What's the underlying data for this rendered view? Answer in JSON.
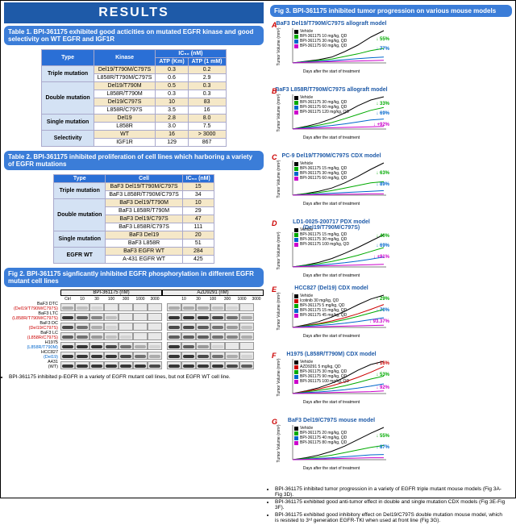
{
  "header": "RESULTS",
  "table1": {
    "title": "Table 1. BPI-361175 exhibited good acticities on mutated EGFR kinase and good selectivity on WT EGFR and IGF1R",
    "cols": [
      "Type",
      "Kinase",
      "ATP (Km)",
      "ATP (1 mM)"
    ],
    "ic50_hdr": "IC₅₀ (nM)",
    "rows": [
      {
        "cat": "Triple mutation",
        "span": 2,
        "k": "Del19/T790M/C797S",
        "a": "0.3",
        "b": "0.2"
      },
      {
        "cat": "",
        "k": "L858R/T790M/C797S",
        "a": "0.6",
        "b": "2.9"
      },
      {
        "cat": "Double mutation",
        "span": 4,
        "k": "Del19/T790M",
        "a": "0.5",
        "b": "0.3"
      },
      {
        "cat": "",
        "k": "L858R/T790M",
        "a": "0.3",
        "b": "0.3"
      },
      {
        "cat": "",
        "k": "Del19/C797S",
        "a": "10",
        "b": "83"
      },
      {
        "cat": "",
        "k": "L858R/C797S",
        "a": "3.5",
        "b": "16"
      },
      {
        "cat": "Single mutation",
        "span": 2,
        "k": "Del19",
        "a": "2.8",
        "b": "8.0"
      },
      {
        "cat": "",
        "k": "L858R",
        "a": "3.0",
        "b": "7.5"
      },
      {
        "cat": "Selectivity",
        "span": 2,
        "k": "WT",
        "a": "16",
        "b": "> 3000"
      },
      {
        "cat": "",
        "k": "IGF1R",
        "a": "129",
        "b": "867"
      }
    ]
  },
  "table2": {
    "title": "Table 2.  BPI-361175 inhibited proliferation of cell lines which harboring a variety of EGFR mutations",
    "cols": [
      "Type",
      "Cell",
      "IC₅₀ (nM)"
    ],
    "rows": [
      {
        "cat": "Triple mutation",
        "span": 2,
        "c": "BaF3 Del19/T790M/C797S",
        "v": "15"
      },
      {
        "cat": "",
        "c": "BaF3 L858R/T790M/C797S",
        "v": "34"
      },
      {
        "cat": "Double mutation",
        "span": 4,
        "c": "BaF3 Del19/T790M",
        "v": "10"
      },
      {
        "cat": "",
        "c": "BaF3 L858R/T790M",
        "v": "29"
      },
      {
        "cat": "",
        "c": "BaF3 Del19/C797S",
        "v": "47"
      },
      {
        "cat": "",
        "c": "BaF3 L858R/C797S",
        "v": "111"
      },
      {
        "cat": "Single mutation",
        "span": 2,
        "c": "BaF3 Del19",
        "v": "20"
      },
      {
        "cat": "",
        "c": "BaF3 L858R",
        "v": "51"
      },
      {
        "cat": "EGFR WT",
        "span": 2,
        "c": "BaF3 EGFR WT",
        "v": "284"
      },
      {
        "cat": "",
        "c": "A-431 EGFR WT",
        "v": "425"
      }
    ]
  },
  "fig2": {
    "title": "Fig 2. BPI-361175 signficantly inhibited EGFR phosphorylation in different EGFR mutant cell lines",
    "drug1": "BPI-361175 (nM)",
    "drug2": "AZD9291 (nM)",
    "conc": [
      "Ctrl",
      "10",
      "30",
      "100",
      "300",
      "1000",
      "3000",
      "",
      "10",
      "30",
      "100",
      "300",
      "1000",
      "3000"
    ],
    "rows": [
      {
        "l": "BaF3 DTC",
        "s": "(Del19/T790M/C797S)",
        "c": "red",
        "bands": [
          0.3,
          0.2,
          0.1,
          0,
          0,
          0,
          0,
          0,
          0.3,
          0.3,
          0.3,
          0.2,
          0.1,
          0
        ]
      },
      {
        "l": "BaF3 LTC",
        "s": "(L858R/T790M/C797S)",
        "c": "red",
        "bands": [
          0.9,
          0.7,
          0.5,
          0.2,
          0,
          0,
          0,
          0,
          0.9,
          0.9,
          0.9,
          0.8,
          0.6,
          0.3
        ]
      },
      {
        "l": "BaF3 DC",
        "s": "(Del19/C797S)",
        "c": "red",
        "bands": [
          0.8,
          0.6,
          0.3,
          0.1,
          0,
          0,
          0,
          0,
          0.8,
          0.8,
          0.7,
          0.6,
          0.4,
          0.2
        ]
      },
      {
        "l": "BaF3 LC",
        "s": "(L858R/C797S)",
        "c": "red",
        "bands": [
          0.7,
          0.6,
          0.4,
          0.2,
          0.1,
          0,
          0,
          0,
          0.7,
          0.7,
          0.7,
          0.6,
          0.5,
          0.3
        ]
      },
      {
        "l": "H1975",
        "s": "(L858R/T790M)",
        "c": "blue",
        "bands": [
          0.9,
          0.9,
          0.9,
          0.8,
          0.6,
          0.3,
          0.1,
          0,
          0.9,
          0.7,
          0.4,
          0.1,
          0,
          0
        ]
      },
      {
        "l": "HCC827",
        "s": "(Del19)",
        "c": "blue",
        "bands": [
          0.9,
          0.9,
          0.9,
          0.9,
          0.8,
          0.6,
          0.3,
          0,
          0.9,
          0.9,
          0.8,
          0.6,
          0.3,
          0.1
        ]
      },
      {
        "l": "A431",
        "s": "(WT)",
        "c": "",
        "bands": [
          0.9,
          0.9,
          0.9,
          0.9,
          0.9,
          0.9,
          0.8,
          0,
          0.9,
          0.9,
          0.9,
          0.9,
          0.8,
          0.7
        ]
      }
    ],
    "note": "BPI-361175 inhibited p-EGFR in a variety of EGFR mutant cell lines, but not EGFR WT cell line."
  },
  "fig3": {
    "title": "Fig 3. BPI-361175 inhibited tumor progression on various mouse models",
    "xlabel": "Days after the start of treatment",
    "ylabel": "Tumor Volume (mm³)",
    "charts": [
      {
        "id": "A",
        "title": "BaF3 Del19/T790M/C797S allograft model",
        "legend": [
          [
            "Vehicle",
            "#000"
          ],
          [
            "BPI-361175 10 mg/kg, QD",
            "#0a0"
          ],
          [
            "BPI-361175 30 mg/kg, QD",
            "#06c"
          ],
          [
            "BPI-361175 60 mg/kg, QD",
            "#c0c"
          ]
        ],
        "series": [
          [
            0,
            5,
            10,
            18,
            35,
            55,
            80,
            100
          ],
          [
            0,
            4,
            8,
            12,
            20,
            28,
            38,
            45
          ],
          [
            0,
            3,
            5,
            7,
            10,
            13,
            16,
            18
          ],
          [
            0,
            2,
            3,
            4,
            5,
            6,
            7,
            8
          ]
        ],
        "colors": [
          "#000",
          "#0a0",
          "#06c",
          "#c0c"
        ],
        "pcts": [
          [
            "55%",
            "#0a0",
            20
          ],
          [
            "77%",
            "#06c",
            32
          ]
        ],
        "xmax": 18,
        "ymax": 100
      },
      {
        "id": "B",
        "title": "BaF3 L858R/T790M/C797S allograft model",
        "legend": [
          [
            "Vehicle",
            "#000"
          ],
          [
            "BPI-361175 30 mg/kg, QD",
            "#0a0"
          ],
          [
            "BPI-361175 60 mg/kg, QD",
            "#06c"
          ],
          [
            "BPI-361175 120 mg/kg, QD",
            "#c0c"
          ]
        ],
        "series": [
          [
            0,
            8,
            18,
            32,
            50,
            72,
            90,
            100
          ],
          [
            0,
            6,
            12,
            20,
            32,
            45,
            58,
            67
          ],
          [
            0,
            4,
            7,
            11,
            16,
            22,
            28,
            31
          ],
          [
            0,
            2,
            3,
            4,
            5,
            6,
            7,
            8
          ]
        ],
        "colors": [
          "#000",
          "#0a0",
          "#06c",
          "#c0c"
        ],
        "pcts": [
          [
            "33%",
            "#0a0",
            18
          ],
          [
            "69%",
            "#06c",
            30
          ],
          [
            "+92%",
            "#c0c",
            44
          ]
        ],
        "xmax": 18,
        "ymax": 100
      },
      {
        "id": "C",
        "title": "PC-9 Del19/T790M/C797S CDX model",
        "legend": [
          [
            "Vehicle",
            "#000"
          ],
          [
            "BPI-361175 15 mg/kg, QD",
            "#0a0"
          ],
          [
            "BPI-361175 30 mg/kg, QD",
            "#06c"
          ],
          [
            "BPI-361175 60 mg/kg, QD",
            "#c0c"
          ]
        ],
        "series": [
          [
            0,
            5,
            12,
            22,
            38,
            58,
            80,
            100
          ],
          [
            0,
            4,
            8,
            14,
            22,
            30,
            38,
            42
          ],
          [
            0,
            2,
            4,
            6,
            8,
            10,
            12,
            14
          ],
          [
            0,
            1,
            2,
            2,
            3,
            3,
            4,
            4
          ]
        ],
        "colors": [
          "#000",
          "#0a0",
          "#06c",
          "#c0c"
        ],
        "pcts": [
          [
            "63%",
            "#0a0",
            22
          ],
          [
            "89%",
            "#06c",
            36
          ]
        ],
        "xmax": 28,
        "ymax": 100
      },
      {
        "id": "D",
        "title": "LD1-0025-200717 PDX model (Del19/T790M/C797S)",
        "legend": [
          [
            "Vehicle",
            "#000"
          ],
          [
            "BPI-361175 15 mg/kg, QD",
            "#0a0"
          ],
          [
            "BPI-361175 30 mg/kg, QD",
            "#06c"
          ],
          [
            "BPI-361175 100 mg/kg, QD",
            "#c0c"
          ]
        ],
        "series": [
          [
            0,
            6,
            14,
            26,
            42,
            60,
            80,
            100
          ],
          [
            0,
            5,
            10,
            17,
            26,
            36,
            48,
            60
          ],
          [
            0,
            3,
            6,
            9,
            13,
            18,
            24,
            31
          ],
          [
            0,
            2,
            3,
            4,
            5,
            6,
            7,
            8
          ]
        ],
        "colors": [
          "#000",
          "#0a0",
          "#06c",
          "#c0c"
        ],
        "pcts": [
          [
            "40%",
            "#0a0",
            18
          ],
          [
            "69%",
            "#06c",
            30
          ],
          [
            "+91%",
            "#c0c",
            44
          ]
        ],
        "xmax": 28,
        "ymax": 100
      },
      {
        "id": "E",
        "title": "HCC827 (Del19) CDX model",
        "legend": [
          [
            "Vehicle",
            "#000"
          ],
          [
            "Icotinib 30 mg/kg, QD",
            "#c00"
          ],
          [
            "BPI-361175 5 mg/kg, QD",
            "#0a0"
          ],
          [
            "BPI-361175 15 mg/kg, QD",
            "#06c"
          ],
          [
            "BPI-361175 45 mg/kg, QD",
            "#c0c"
          ]
        ],
        "series": [
          [
            0,
            8,
            18,
            32,
            50,
            70,
            88,
            100
          ],
          [
            0,
            6,
            12,
            20,
            30,
            42,
            56,
            71
          ],
          [
            0,
            5,
            10,
            16,
            24,
            34,
            45,
            56
          ],
          [
            0,
            3,
            6,
            9,
            13,
            18,
            24,
            30
          ],
          [
            0,
            1,
            2,
            3,
            4,
            5,
            6,
            7
          ]
        ],
        "colors": [
          "#000",
          "#c00",
          "#0a0",
          "#06c",
          "#c0c"
        ],
        "pcts": [
          [
            "29%",
            "#0a0",
            14
          ],
          [
            "70%",
            "#06c",
            28
          ],
          [
            "93.37%",
            "#c0c",
            42
          ]
        ],
        "xmax": 21,
        "ymax": 100
      },
      {
        "id": "F",
        "title": "H1975 (L858R/T790M) CDX  model",
        "legend": [
          [
            "Vehicle",
            "#000"
          ],
          [
            "AZD9291 5 mg/kg, QD",
            "#c00"
          ],
          [
            "BPI-361175 30 mg/kg, QD",
            "#0a0"
          ],
          [
            "BPI-361175 90 mg/kg, QD",
            "#06c"
          ],
          [
            "BPI-361175 100 mg/kg, QD",
            "#c0c"
          ]
        ],
        "series": [
          [
            0,
            8,
            18,
            32,
            50,
            72,
            90,
            100
          ],
          [
            0,
            7,
            14,
            24,
            36,
            50,
            66,
            84
          ],
          [
            0,
            5,
            10,
            16,
            24,
            34,
            45,
            54
          ],
          [
            0,
            3,
            5,
            8,
            12,
            17,
            23,
            30
          ],
          [
            0,
            1,
            2,
            3,
            4,
            5,
            6,
            8
          ]
        ],
        "colors": [
          "#000",
          "#c00",
          "#0a0",
          "#06c",
          "#c0c"
        ],
        "pcts": [
          [
            "16%",
            "#c00",
            12
          ],
          [
            "53%",
            "#0a0",
            26
          ],
          [
            "92%",
            "#c0c",
            42
          ]
        ],
        "xmax": 21,
        "ymax": 100
      },
      {
        "id": "G",
        "title": "BaF3 Del19/C797S mouse model",
        "legend": [
          [
            "Vehicle",
            "#000"
          ],
          [
            "BPI-361175 20 mg/kg, QD",
            "#0a0"
          ],
          [
            "BPI-361175 40 mg/kg, QD",
            "#06c"
          ],
          [
            "BPI-361175 80 mg/kg, QD",
            "#c0c"
          ]
        ],
        "series": [
          [
            0,
            6,
            14,
            26,
            42,
            62,
            82,
            100
          ],
          [
            0,
            4,
            8,
            14,
            22,
            30,
            38,
            44
          ],
          [
            0,
            2,
            4,
            6,
            9,
            12,
            15,
            16
          ],
          [
            0,
            1,
            2,
            3,
            4,
            5,
            6,
            6
          ]
        ],
        "colors": [
          "#000",
          "#0a0",
          "#06c",
          "#c0c"
        ],
        "pcts": [
          [
            "55%",
            "#0a0",
            20
          ],
          [
            "87%",
            "#06c",
            34
          ]
        ],
        "xmax": 18,
        "ymax": 100
      }
    ],
    "bullets": [
      "BPI-361175 inhibited tumor progression in a variety of EGFR triple mutant mouse models (Fig 3A-Fig 3D).",
      "BPI-361175 exhibited good anti-tumor effect in double and single mutation CDX models (Fig 3E-Fig 3F).",
      "BPI-361175 exhibited good inhibitory effect on Del19/C797S double mutation mouse model, which is resisted to 3ʳᵈ generation EGFR-TKI when used at front line (Fig 3G)."
    ]
  }
}
